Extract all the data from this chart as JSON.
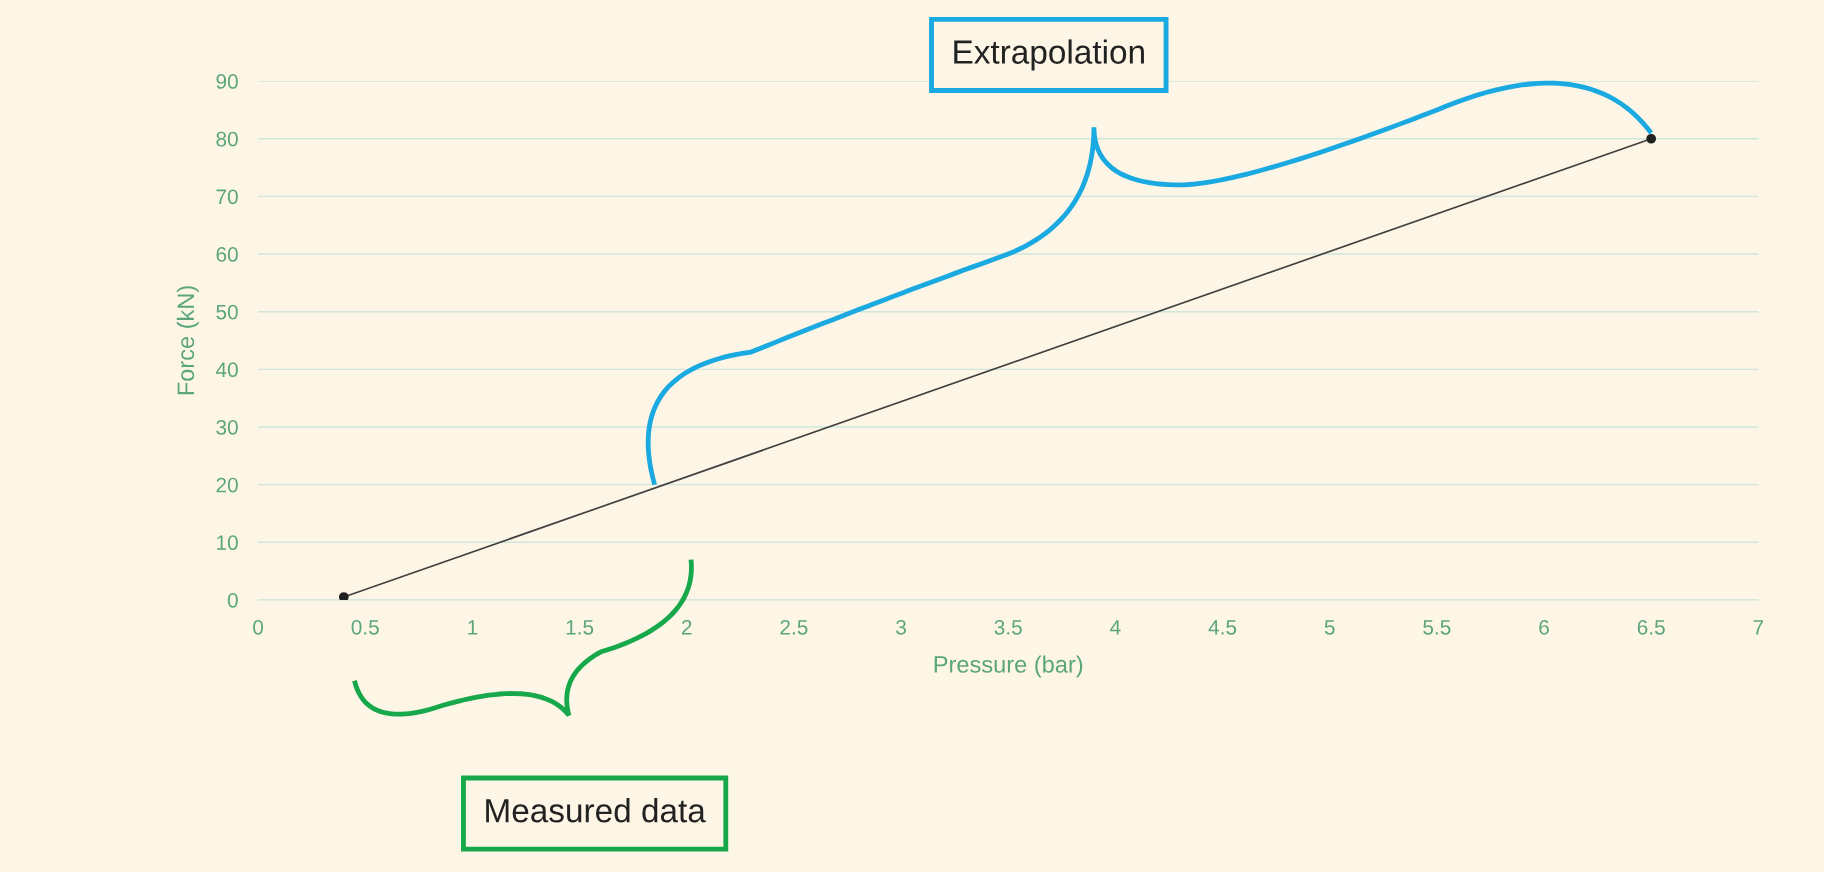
{
  "chart_data": {
    "type": "line",
    "xlabel": "Pressure (bar)",
    "ylabel": "Force (kN)",
    "x": [
      0.4,
      6.5
    ],
    "series": [
      {
        "color": "#404040",
        "values": [
          0.5,
          80
        ]
      }
    ],
    "marker": "circle",
    "line_style": "solid",
    "xlim": [
      0,
      7
    ],
    "ylim": [
      0,
      90
    ],
    "xticks": [
      0,
      0.5,
      1,
      1.5,
      2,
      2.5,
      3,
      3.5,
      4,
      4.5,
      5,
      5.5,
      6,
      6.5,
      7
    ],
    "yticks": [
      0,
      10,
      20,
      30,
      40,
      50,
      60,
      70,
      80,
      90
    ],
    "grid": "y",
    "legend": false,
    "annotations": [
      "Extrapolation",
      "Measured data"
    ]
  }
}
